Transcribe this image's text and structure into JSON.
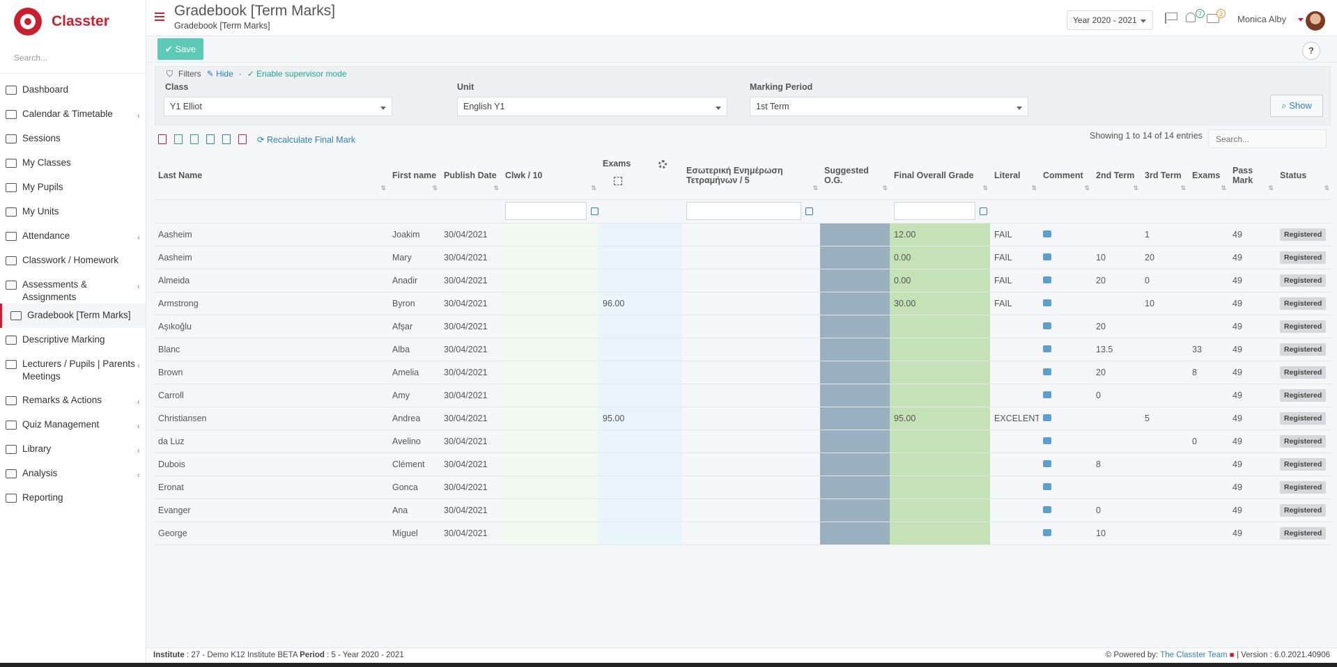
{
  "app": {
    "name": "Classter"
  },
  "sidebar": {
    "search_placeholder": "Search...",
    "items": [
      {
        "label": "Dashboard",
        "icon": "laptop-icon",
        "chevron": false
      },
      {
        "label": "Calendar & Timetable",
        "icon": "calendar-icon",
        "chevron": true
      },
      {
        "label": "Sessions",
        "icon": "sessions-icon",
        "chevron": false
      },
      {
        "label": "My Classes",
        "icon": "classes-icon",
        "chevron": false
      },
      {
        "label": "My Pupils",
        "icon": "pupils-icon",
        "chevron": false
      },
      {
        "label": "My Units",
        "icon": "book-icon",
        "chevron": false
      },
      {
        "label": "Attendance",
        "icon": "attendance-icon",
        "chevron": true
      },
      {
        "label": "Classwork / Homework",
        "icon": "list-icon",
        "chevron": false
      },
      {
        "label": "Assessments & Assignments",
        "icon": "edit-icon",
        "chevron": true
      },
      {
        "label": "Gradebook [Term Marks]",
        "icon": "gradebook-icon",
        "chevron": false,
        "active": true
      },
      {
        "label": "Descriptive Marking",
        "icon": "marking-icon",
        "chevron": false
      },
      {
        "label": "Lecturers / Pupils | Parents Meetings",
        "icon": "meetings-icon",
        "chevron": true
      },
      {
        "label": "Remarks & Actions",
        "icon": "remarks-icon",
        "chevron": true
      },
      {
        "label": "Quiz Management",
        "icon": "quiz-icon",
        "chevron": true
      },
      {
        "label": "Library",
        "icon": "library-icon",
        "chevron": true
      },
      {
        "label": "Analysis",
        "icon": "analysis-icon",
        "chevron": true
      },
      {
        "label": "Reporting",
        "icon": "printer-icon",
        "chevron": false
      }
    ]
  },
  "header": {
    "title": "Gradebook [Term Marks]",
    "subtitle": "Gradebook [Term Marks]",
    "year": "Year 2020 - 2021",
    "notifications_count": "7",
    "messages_count": "3",
    "user_name": "Monica Alby"
  },
  "toolbar": {
    "save_label": "Save",
    "help_label": "?"
  },
  "filters": {
    "title": "Filters",
    "hide_label": "Hide",
    "supervisor_label": "Enable supervisor mode",
    "class_label": "Class",
    "class_value": "Y1 Elliot",
    "unit_label": "Unit",
    "unit_value": "English Y1",
    "period_label": "Marking Period",
    "period_value": "1st Term",
    "show_label": "Show"
  },
  "table_tools": {
    "recalc_label": "Recalculate Final Mark",
    "showing": "Showing 1 to 14 of 14 entries",
    "search_placeholder": "Search..."
  },
  "columns": {
    "last_name": "Last Name",
    "first_name": "First name",
    "publish_date": "Publish Date",
    "clwk": "Clwk / 10",
    "exams": "Exams",
    "internal": "Εσωτερική Ενημέρωση Τετραμήνων / 5",
    "suggested": "Suggested O.G.",
    "final": "Final Overall Grade",
    "literal": "Literal",
    "comment": "Comment",
    "term2": "2nd Term",
    "term3": "3rd Term",
    "exams2": "Exams",
    "pass_mark": "Pass Mark",
    "status": "Status"
  },
  "rows": [
    {
      "last": "Aasheim",
      "first": "Joakim",
      "date": "30/04/2021",
      "exams": "",
      "final": "12.00",
      "literal": "FAIL",
      "t2": "",
      "t3": "1",
      "ex2": "",
      "pass": "49",
      "status": "Registered",
      "red": true
    },
    {
      "last": "Aasheim",
      "first": "Mary",
      "date": "30/04/2021",
      "exams": "",
      "final": "0.00",
      "literal": "FAIL",
      "t2": "10",
      "t3": "20",
      "ex2": "",
      "pass": "49",
      "status": "Registered",
      "red": false
    },
    {
      "last": "Almeida",
      "first": "Anadir",
      "date": "30/04/2021",
      "exams": "",
      "final": "0.00",
      "literal": "FAIL",
      "t2": "20",
      "t3": "0",
      "ex2": "",
      "pass": "49",
      "status": "Registered",
      "red": false
    },
    {
      "last": "Armstrong",
      "first": "Byron",
      "date": "30/04/2021",
      "exams": "96.00",
      "final": "30.00",
      "literal": "FAIL",
      "t2": "",
      "t3": "10",
      "ex2": "",
      "pass": "49",
      "status": "Registered",
      "red": true
    },
    {
      "last": "Aşıkoğlu",
      "first": "Afşar",
      "date": "30/04/2021",
      "exams": "",
      "final": "",
      "literal": "",
      "t2": "20",
      "t3": "",
      "ex2": "",
      "pass": "49",
      "status": "Registered",
      "red": false
    },
    {
      "last": "Blanc",
      "first": "Alba",
      "date": "30/04/2021",
      "exams": "",
      "final": "",
      "literal": "",
      "t2": "13.5",
      "t3": "",
      "ex2": "33",
      "pass": "49",
      "status": "Registered",
      "red": false
    },
    {
      "last": "Brown",
      "first": "Amelia",
      "date": "30/04/2021",
      "exams": "",
      "final": "",
      "literal": "",
      "t2": "20",
      "t3": "",
      "ex2": "8",
      "pass": "49",
      "status": "Registered",
      "red": false
    },
    {
      "last": "Carroll",
      "first": "Amy",
      "date": "30/04/2021",
      "exams": "",
      "final": "",
      "literal": "",
      "t2": "0",
      "t3": "",
      "ex2": "",
      "pass": "49",
      "status": "Registered",
      "red": false
    },
    {
      "last": "Christiansen",
      "first": "Andrea",
      "date": "30/04/2021",
      "exams": "95.00",
      "final": "95.00",
      "literal": "EXCELENT",
      "t2": "",
      "t3": "5",
      "ex2": "",
      "pass": "49",
      "status": "Registered",
      "red": false
    },
    {
      "last": "da Luz",
      "first": "Avelino",
      "date": "30/04/2021",
      "exams": "",
      "final": "",
      "literal": "",
      "t2": "",
      "t3": "",
      "ex2": "0",
      "pass": "49",
      "status": "Registered",
      "red": false
    },
    {
      "last": "Dubois",
      "first": "Clément",
      "date": "30/04/2021",
      "exams": "",
      "final": "",
      "literal": "",
      "t2": "8",
      "t3": "",
      "ex2": "",
      "pass": "49",
      "status": "Registered",
      "red": false
    },
    {
      "last": "Eronat",
      "first": "Gonca",
      "date": "30/04/2021",
      "exams": "",
      "final": "",
      "literal": "",
      "t2": "",
      "t3": "",
      "ex2": "",
      "pass": "49",
      "status": "Registered",
      "red": false
    },
    {
      "last": "Evanger",
      "first": "Ana",
      "date": "30/04/2021",
      "exams": "",
      "final": "",
      "literal": "",
      "t2": "0",
      "t3": "",
      "ex2": "",
      "pass": "49",
      "status": "Registered",
      "red": false
    },
    {
      "last": "George",
      "first": "Miguel",
      "date": "30/04/2021",
      "exams": "",
      "final": "",
      "literal": "",
      "t2": "10",
      "t3": "",
      "ex2": "",
      "pass": "49",
      "status": "Registered",
      "red": false
    }
  ],
  "footer": {
    "institute_label": "Institute",
    "institute_value": ": 27 - Demo K12 Institute BETA",
    "period_label": "Period",
    "period_value": ": 5 - Year 2020 - 2021",
    "powered_label": "Powered by:",
    "powered_link": "The Classter Team",
    "version": "| Version : 6.0.2021.40906"
  }
}
